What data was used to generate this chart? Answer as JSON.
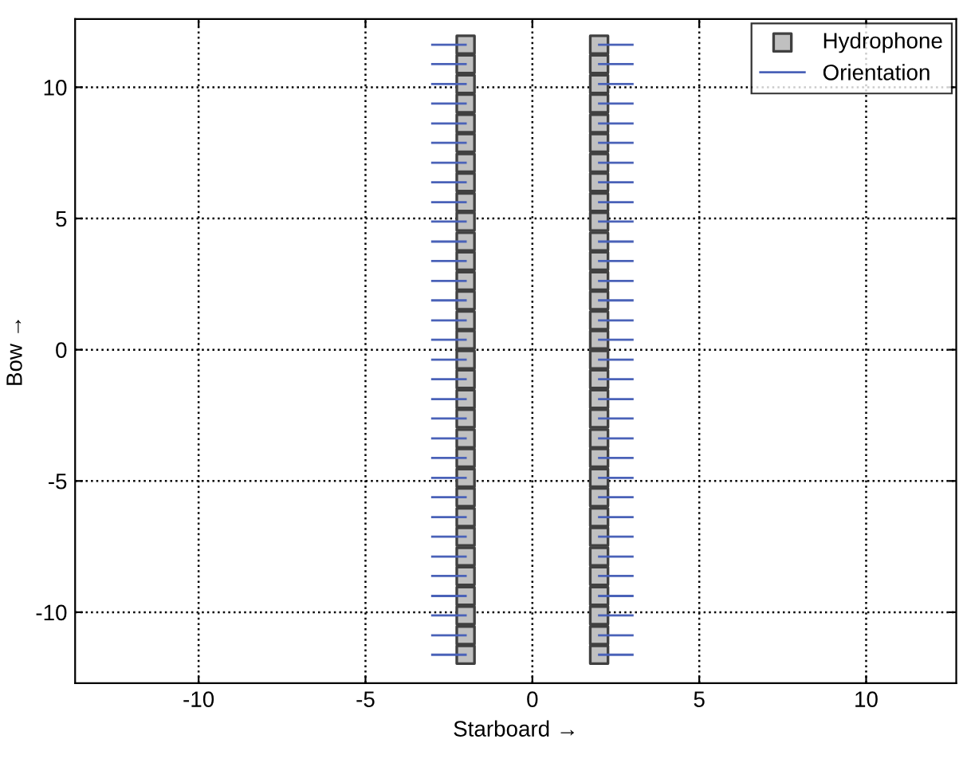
{
  "chart_data": {
    "type": "scatter",
    "xlabel": "Starboard →",
    "ylabel": "Bow →",
    "xlim": [
      -13.7,
      12.7
    ],
    "ylim": [
      -12.7,
      12.6
    ],
    "xticks": [
      -10,
      -5,
      0,
      5,
      10
    ],
    "yticks": [
      -10,
      -5,
      0,
      5,
      10
    ],
    "grid": true,
    "legend": "top right",
    "series": [
      {
        "name": "Hydrophone",
        "marker": "square",
        "color": "#c0c0c0",
        "x": [
          -2,
          -2,
          -2,
          -2,
          -2,
          -2,
          -2,
          -2,
          -2,
          -2,
          -2,
          -2,
          -2,
          -2,
          -2,
          -2,
          -2,
          -2,
          -2,
          -2,
          -2,
          -2,
          -2,
          -2,
          -2,
          -2,
          -2,
          -2,
          -2,
          -2,
          -2,
          -2,
          2,
          2,
          2,
          2,
          2,
          2,
          2,
          2,
          2,
          2,
          2,
          2,
          2,
          2,
          2,
          2,
          2,
          2,
          2,
          2,
          2,
          2,
          2,
          2,
          2,
          2,
          2,
          2,
          2,
          2,
          2,
          2
        ],
        "values": [
          -11.62,
          -10.88,
          -10.12,
          -9.38,
          -8.62,
          -7.88,
          -7.12,
          -6.38,
          -5.62,
          -4.88,
          -4.12,
          -3.38,
          -2.62,
          -1.88,
          -1.12,
          -0.38,
          0.38,
          1.12,
          1.88,
          2.62,
          3.38,
          4.12,
          4.88,
          5.62,
          6.38,
          7.12,
          7.88,
          8.62,
          9.38,
          10.12,
          10.88,
          11.62,
          -11.62,
          -10.88,
          -10.12,
          -9.38,
          -8.62,
          -7.88,
          -7.12,
          -6.38,
          -5.62,
          -4.88,
          -4.12,
          -3.38,
          -2.62,
          -1.88,
          -1.12,
          -0.38,
          0.38,
          1.12,
          1.88,
          2.62,
          3.38,
          4.12,
          4.88,
          5.62,
          6.38,
          7.12,
          7.88,
          8.62,
          9.38,
          10.12,
          10.88,
          11.62
        ]
      },
      {
        "name": "Orientation",
        "type": "line",
        "color": "#4a62b8",
        "x": [
          -3,
          -2
        ],
        "values": [
          -11.62,
          -11.62
        ]
      },
      {
        "type": "line",
        "color": "#4a62b8",
        "x": [
          -3,
          -2
        ],
        "values": [
          -10.88,
          -10.88
        ]
      },
      {
        "type": "line",
        "color": "#4a62b8",
        "x": [
          -3,
          -2
        ],
        "values": [
          -10.12,
          -10.12
        ]
      },
      {
        "type": "line",
        "color": "#4a62b8",
        "x": [
          -3,
          -2
        ],
        "values": [
          -9.38,
          -9.38
        ]
      },
      {
        "type": "line",
        "color": "#4a62b8",
        "x": [
          -3,
          -2
        ],
        "values": [
          -8.62,
          -8.62
        ]
      },
      {
        "type": "line",
        "color": "#4a62b8",
        "x": [
          -3,
          -2
        ],
        "values": [
          -7.88,
          -7.88
        ]
      },
      {
        "type": "line",
        "color": "#4a62b8",
        "x": [
          -3,
          -2
        ],
        "values": [
          -7.12,
          -7.12
        ]
      },
      {
        "type": "line",
        "color": "#4a62b8",
        "x": [
          -3,
          -2
        ],
        "values": [
          -6.38,
          -6.38
        ]
      },
      {
        "type": "line",
        "color": "#4a62b8",
        "x": [
          -3,
          -2
        ],
        "values": [
          -5.62,
          -5.62
        ]
      },
      {
        "type": "line",
        "color": "#4a62b8",
        "x": [
          -3,
          -2
        ],
        "values": [
          -4.88,
          -4.88
        ]
      },
      {
        "type": "line",
        "color": "#4a62b8",
        "x": [
          -3,
          -2
        ],
        "values": [
          -4.12,
          -4.12
        ]
      },
      {
        "type": "line",
        "color": "#4a62b8",
        "x": [
          -3,
          -2
        ],
        "values": [
          -3.38,
          -3.38
        ]
      },
      {
        "type": "line",
        "color": "#4a62b8",
        "x": [
          -3,
          -2
        ],
        "values": [
          -2.62,
          -2.62
        ]
      },
      {
        "type": "line",
        "color": "#4a62b8",
        "x": [
          -3,
          -2
        ],
        "values": [
          -1.88,
          -1.88
        ]
      },
      {
        "type": "line",
        "color": "#4a62b8",
        "x": [
          -3,
          -2
        ],
        "values": [
          -1.12,
          -1.12
        ]
      },
      {
        "type": "line",
        "color": "#4a62b8",
        "x": [
          -3,
          -2
        ],
        "values": [
          -0.38,
          -0.38
        ]
      },
      {
        "type": "line",
        "color": "#4a62b8",
        "x": [
          -3,
          -2
        ],
        "values": [
          0.38,
          0.38
        ]
      },
      {
        "type": "line",
        "color": "#4a62b8",
        "x": [
          -3,
          -2
        ],
        "values": [
          1.12,
          1.12
        ]
      },
      {
        "type": "line",
        "color": "#4a62b8",
        "x": [
          -3,
          -2
        ],
        "values": [
          1.88,
          1.88
        ]
      },
      {
        "type": "line",
        "color": "#4a62b8",
        "x": [
          -3,
          -2
        ],
        "values": [
          2.62,
          2.62
        ]
      },
      {
        "type": "line",
        "color": "#4a62b8",
        "x": [
          -3,
          -2
        ],
        "values": [
          3.38,
          3.38
        ]
      },
      {
        "type": "line",
        "color": "#4a62b8",
        "x": [
          -3,
          -2
        ],
        "values": [
          4.12,
          4.12
        ]
      },
      {
        "type": "line",
        "color": "#4a62b8",
        "x": [
          -3,
          -2
        ],
        "values": [
          4.88,
          4.88
        ]
      },
      {
        "type": "line",
        "color": "#4a62b8",
        "x": [
          -3,
          -2
        ],
        "values": [
          5.62,
          5.62
        ]
      },
      {
        "type": "line",
        "color": "#4a62b8",
        "x": [
          -3,
          -2
        ],
        "values": [
          6.38,
          6.38
        ]
      },
      {
        "type": "line",
        "color": "#4a62b8",
        "x": [
          -3,
          -2
        ],
        "values": [
          7.12,
          7.12
        ]
      },
      {
        "type": "line",
        "color": "#4a62b8",
        "x": [
          -3,
          -2
        ],
        "values": [
          7.88,
          7.88
        ]
      },
      {
        "type": "line",
        "color": "#4a62b8",
        "x": [
          -3,
          -2
        ],
        "values": [
          8.62,
          8.62
        ]
      },
      {
        "type": "line",
        "color": "#4a62b8",
        "x": [
          -3,
          -2
        ],
        "values": [
          9.38,
          9.38
        ]
      },
      {
        "type": "line",
        "color": "#4a62b8",
        "x": [
          -3,
          -2
        ],
        "values": [
          10.12,
          10.12
        ]
      },
      {
        "type": "line",
        "color": "#4a62b8",
        "x": [
          -3,
          -2
        ],
        "values": [
          10.88,
          10.88
        ]
      },
      {
        "type": "line",
        "color": "#4a62b8",
        "x": [
          -3,
          -2
        ],
        "values": [
          11.62,
          11.62
        ]
      },
      {
        "type": "line",
        "color": "#4a62b8",
        "x": [
          2,
          3
        ],
        "values": [
          -11.62,
          -11.62
        ]
      },
      {
        "type": "line",
        "color": "#4a62b8",
        "x": [
          2,
          3
        ],
        "values": [
          -10.88,
          -10.88
        ]
      },
      {
        "type": "line",
        "color": "#4a62b8",
        "x": [
          2,
          3
        ],
        "values": [
          -10.12,
          -10.12
        ]
      },
      {
        "type": "line",
        "color": "#4a62b8",
        "x": [
          2,
          3
        ],
        "values": [
          -9.38,
          -9.38
        ]
      },
      {
        "type": "line",
        "color": "#4a62b8",
        "x": [
          2,
          3
        ],
        "values": [
          -8.62,
          -8.62
        ]
      },
      {
        "type": "line",
        "color": "#4a62b8",
        "x": [
          2,
          3
        ],
        "values": [
          -7.88,
          -7.88
        ]
      },
      {
        "type": "line",
        "color": "#4a62b8",
        "x": [
          2,
          3
        ],
        "values": [
          -7.12,
          -7.12
        ]
      },
      {
        "type": "line",
        "color": "#4a62b8",
        "x": [
          2,
          3
        ],
        "values": [
          -6.38,
          -6.38
        ]
      },
      {
        "type": "line",
        "color": "#4a62b8",
        "x": [
          2,
          3
        ],
        "values": [
          -5.62,
          -5.62
        ]
      },
      {
        "type": "line",
        "color": "#4a62b8",
        "x": [
          2,
          3
        ],
        "values": [
          -4.88,
          -4.88
        ]
      },
      {
        "type": "line",
        "color": "#4a62b8",
        "x": [
          2,
          3
        ],
        "values": [
          -4.12,
          -4.12
        ]
      },
      {
        "type": "line",
        "color": "#4a62b8",
        "x": [
          2,
          3
        ],
        "values": [
          -3.38,
          -3.38
        ]
      },
      {
        "type": "line",
        "color": "#4a62b8",
        "x": [
          2,
          3
        ],
        "values": [
          -2.62,
          -2.62
        ]
      },
      {
        "type": "line",
        "color": "#4a62b8",
        "x": [
          2,
          3
        ],
        "values": [
          -1.88,
          -1.88
        ]
      },
      {
        "type": "line",
        "color": "#4a62b8",
        "x": [
          2,
          3
        ],
        "values": [
          -1.12,
          -1.12
        ]
      },
      {
        "type": "line",
        "color": "#4a62b8",
        "x": [
          2,
          3
        ],
        "values": [
          -0.38,
          -0.38
        ]
      },
      {
        "type": "line",
        "color": "#4a62b8",
        "x": [
          2,
          3
        ],
        "values": [
          0.38,
          0.38
        ]
      },
      {
        "type": "line",
        "color": "#4a62b8",
        "x": [
          2,
          3
        ],
        "values": [
          1.12,
          1.12
        ]
      },
      {
        "type": "line",
        "color": "#4a62b8",
        "x": [
          2,
          3
        ],
        "values": [
          1.88,
          1.88
        ]
      },
      {
        "type": "line",
        "color": "#4a62b8",
        "x": [
          2,
          3
        ],
        "values": [
          2.62,
          2.62
        ]
      },
      {
        "type": "line",
        "color": "#4a62b8",
        "x": [
          2,
          3
        ],
        "values": [
          3.38,
          3.38
        ]
      },
      {
        "type": "line",
        "color": "#4a62b8",
        "x": [
          2,
          3
        ],
        "values": [
          4.12,
          4.12
        ]
      },
      {
        "type": "line",
        "color": "#4a62b8",
        "x": [
          2,
          3
        ],
        "values": [
          4.88,
          4.88
        ]
      },
      {
        "type": "line",
        "color": "#4a62b8",
        "x": [
          2,
          3
        ],
        "values": [
          5.62,
          5.62
        ]
      },
      {
        "type": "line",
        "color": "#4a62b8",
        "x": [
          2,
          3
        ],
        "values": [
          6.38,
          6.38
        ]
      },
      {
        "type": "line",
        "color": "#4a62b8",
        "x": [
          2,
          3
        ],
        "values": [
          7.12,
          7.12
        ]
      },
      {
        "type": "line",
        "color": "#4a62b8",
        "x": [
          2,
          3
        ],
        "values": [
          7.88,
          7.88
        ]
      },
      {
        "type": "line",
        "color": "#4a62b8",
        "x": [
          2,
          3
        ],
        "values": [
          8.62,
          8.62
        ]
      },
      {
        "type": "line",
        "color": "#4a62b8",
        "x": [
          2,
          3
        ],
        "values": [
          9.38,
          9.38
        ]
      },
      {
        "type": "line",
        "color": "#4a62b8",
        "x": [
          2,
          3
        ],
        "values": [
          10.12,
          10.12
        ]
      },
      {
        "type": "line",
        "color": "#4a62b8",
        "x": [
          2,
          3
        ],
        "values": [
          10.88,
          10.88
        ]
      },
      {
        "type": "line",
        "color": "#4a62b8",
        "x": [
          2,
          3
        ],
        "values": [
          11.62,
          11.62
        ]
      }
    ]
  }
}
